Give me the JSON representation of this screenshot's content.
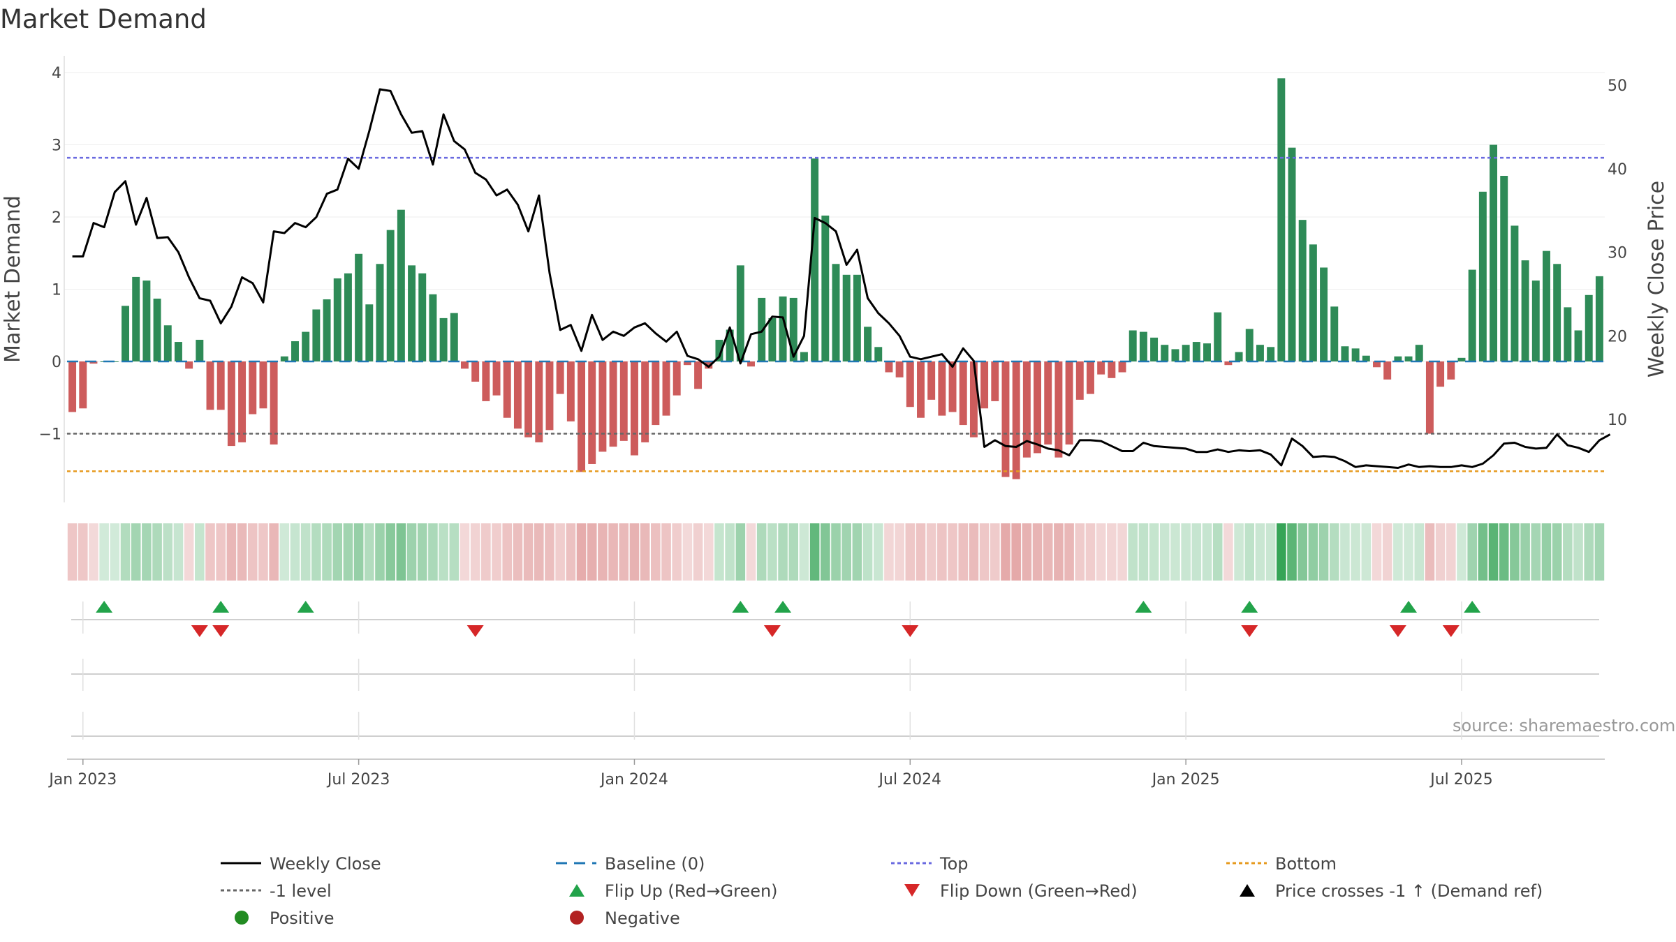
{
  "title": "Market Demand",
  "source": "source: sharemaestro.com",
  "colors": {
    "positive": "#2e8b57",
    "negative": "#cd5c5c",
    "price": "#000000",
    "baseline": "#1f77b4",
    "top": "#6a6ae0",
    "bottom": "#e69a1e",
    "minus_one": "#666666",
    "flip_up": "#22a34a",
    "flip_down": "#d62728"
  },
  "chart_data": {
    "type": "bar+line",
    "title": "Market Demand",
    "ylabel_left": "Market Demand",
    "ylabel_right": "Weekly Close Price",
    "yticks_left": [
      4,
      3,
      2,
      1,
      0,
      -1
    ],
    "ytick_labels_left": [
      "4",
      "3",
      "2",
      "1",
      "0",
      "−1"
    ],
    "yticks_right": [
      50,
      40,
      30,
      20,
      10
    ],
    "xtick_labels": [
      "Jan 2023",
      "Jul 2023",
      "Jan 2024",
      "Jul 2024",
      "Jan 2025",
      "Jul 2025"
    ],
    "xtick_week_index": [
      1,
      27,
      53,
      79,
      105,
      131
    ],
    "ylim_left": [
      -2.0,
      4.2
    ],
    "ylim_right": [
      2,
      52
    ],
    "reference_lines": {
      "top": 2.82,
      "bottom": -1.52,
      "minus_one": -1,
      "baseline": 0
    },
    "demand": [
      -0.7,
      -0.65,
      -0.03,
      0,
      0,
      0.77,
      1.17,
      1.12,
      0.87,
      0.5,
      0.27,
      -0.1,
      0.3,
      -0.67,
      -0.67,
      -1.17,
      -1.12,
      -0.73,
      -0.65,
      -1.15,
      0.07,
      0.28,
      0.41,
      0.72,
      0.86,
      1.15,
      1.22,
      1.49,
      0.79,
      1.35,
      1.82,
      2.1,
      1.33,
      1.22,
      0.93,
      0.6,
      0.67,
      -0.1,
      -0.28,
      -0.55,
      -0.47,
      -0.78,
      -0.93,
      -1.05,
      -1.12,
      -0.95,
      -0.45,
      -0.83,
      -1.53,
      -1.42,
      -1.25,
      -1.18,
      -1.1,
      -1.3,
      -1.12,
      -0.88,
      -0.75,
      -0.47,
      -0.05,
      -0.38,
      -0.1,
      0.3,
      0.44,
      1.33,
      -0.07,
      0.88,
      0.6,
      0.9,
      0.88,
      0.13,
      2.81,
      2.02,
      1.35,
      1.2,
      1.2,
      0.48,
      0.2,
      -0.15,
      -0.22,
      -0.63,
      -0.78,
      -0.53,
      -0.75,
      -0.7,
      -0.88,
      -1.05,
      -0.65,
      -0.55,
      -1.6,
      -1.63,
      -1.33,
      -1.27,
      -1.15,
      -1.33,
      -1.15,
      -0.53,
      -0.45,
      -0.18,
      -0.23,
      -0.15,
      0.43,
      0.41,
      0.33,
      0.23,
      0.17,
      0.23,
      0.27,
      0.25,
      0.68,
      -0.05,
      0.13,
      0.45,
      0.23,
      0.2,
      3.92,
      2.96,
      1.96,
      1.62,
      1.3,
      0.76,
      0.21,
      0.18,
      0.08,
      -0.08,
      -0.25,
      0.07,
      0.07,
      0.23,
      -1.0,
      -0.35,
      -0.25,
      0.05,
      1.27,
      2.35,
      3.0,
      2.57,
      1.88,
      1.4,
      1.12,
      1.53,
      1.35,
      0.75,
      0.43,
      0.92,
      1.18
    ],
    "weekly_close": [
      29.5,
      29.5,
      33.5,
      33,
      37.2,
      38.5,
      33.3,
      36.5,
      31.7,
      31.8,
      30,
      27,
      24.5,
      24.2,
      21.5,
      23.5,
      27,
      26.3,
      24,
      32.5,
      32.3,
      33.5,
      33,
      34.2,
      37,
      37.5,
      41.2,
      40,
      44.5,
      49.5,
      49.3,
      46.5,
      44.3,
      44.5,
      40.5,
      46.5,
      43.3,
      42.3,
      39.5,
      38.7,
      36.8,
      37.5,
      35.7,
      32.5,
      36.8,
      27.5,
      20.7,
      21.3,
      18.2,
      22.5,
      19.5,
      20.5,
      20,
      21,
      21.5,
      20.3,
      19.3,
      20.5,
      17.6,
      17.2,
      16.3,
      17.5,
      21,
      16.7,
      20.2,
      20.5,
      22.3,
      22.2,
      17.5,
      20,
      34.1,
      33.5,
      32.5,
      28.5,
      30.3,
      24.5,
      22.7,
      21.5,
      20,
      17.5,
      17.2,
      17.5,
      17.8,
      16.3,
      18.5,
      17,
      6.7,
      7.5,
      6.8,
      6.7,
      7.4,
      7,
      6.5,
      6.3,
      5.7,
      7.5,
      7.5,
      7.4,
      6.8,
      6.2,
      6.2,
      7.2,
      6.8,
      6.7,
      6.6,
      6.5,
      6.1,
      6.1,
      6.4,
      6.1,
      6.3,
      6.2,
      6.3,
      5.8,
      4.5,
      7.7,
      6.8,
      5.5,
      5.6,
      5.5,
      5,
      4.3,
      4.5,
      4.4,
      4.3,
      4.2,
      4.6,
      4.3,
      4.4,
      4.3,
      4.3,
      4.5,
      4.3,
      4.7,
      5.7,
      7.1,
      7.2,
      6.7,
      6.5,
      6.6,
      8.2,
      6.9,
      6.6,
      6.1,
      7.5,
      8.2
    ],
    "flip_up_weeks": [
      3,
      14,
      22,
      63,
      67,
      101,
      111,
      126,
      132
    ],
    "flip_down_weeks": [
      12,
      14,
      38,
      66,
      79,
      111,
      125,
      130
    ],
    "legend": [
      {
        "label": "Weekly Close",
        "kind": "line",
        "color": "#000000"
      },
      {
        "label": "Baseline (0)",
        "kind": "dash",
        "color": "#1f77b4"
      },
      {
        "label": "Top",
        "kind": "dot",
        "color": "#6a6ae0"
      },
      {
        "label": "Bottom",
        "kind": "dot",
        "color": "#e69a1e"
      },
      {
        "label": "-1 level",
        "kind": "dot",
        "color": "#666666"
      },
      {
        "label": "Flip Up (Red→Green)",
        "kind": "tri-up",
        "color": "#22a34a"
      },
      {
        "label": "Flip Down (Green→Red)",
        "kind": "tri-down",
        "color": "#d62728"
      },
      {
        "label": "Price crosses -1 ↑ (Demand ref)",
        "kind": "tri-up",
        "color": "#000000"
      },
      {
        "label": "Positive",
        "kind": "circle",
        "color": "#228b22"
      },
      {
        "label": "Negative",
        "kind": "circle",
        "color": "#b22222"
      }
    ]
  }
}
